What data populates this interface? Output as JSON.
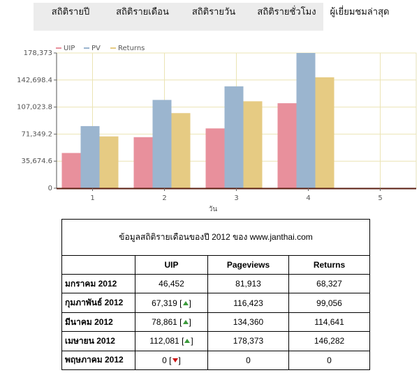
{
  "tabs": [
    {
      "label": "สถิติรายปี",
      "active": false
    },
    {
      "label": "สถิติรายเดือน",
      "active": false
    },
    {
      "label": "สถิติรายวัน",
      "active": false
    },
    {
      "label": "สถิติรายชั่วโมง",
      "active": false
    },
    {
      "label": "ผู้เยี่ยมชมล่าสุด",
      "active": true
    }
  ],
  "chart_data": {
    "type": "bar",
    "categories": [
      "1",
      "2",
      "3",
      "4",
      "5"
    ],
    "series": [
      {
        "name": "UIP",
        "color": "#e8909c",
        "values": [
          46452,
          67319,
          78861,
          112081,
          0
        ]
      },
      {
        "name": "PV",
        "color": "#9bb5cf",
        "values": [
          81913,
          116423,
          134360,
          178373,
          0
        ]
      },
      {
        "name": "Returns",
        "color": "#e6cb83",
        "values": [
          68327,
          99056,
          114641,
          146282,
          0
        ]
      }
    ],
    "xlabel": "วัน",
    "ylabel": "",
    "ylim": [
      0,
      178373
    ],
    "yticks": [
      "0",
      "35,674.6",
      "71,349.2",
      "107,023.8",
      "142,698.4",
      "178,373"
    ],
    "grid": true,
    "legend": "top-left"
  },
  "table": {
    "caption": "ข้อมูลสถิติรายเดือนของปี 2012 ของ www.janthai.com",
    "headers": [
      "",
      "UIP",
      "Pageviews",
      "Returns"
    ],
    "rows": [
      {
        "month": "มกราคม 2012",
        "uip": "46,452",
        "trend": "",
        "pageviews": "81,913",
        "returns": "68,327"
      },
      {
        "month": "กุมภาพันธ์ 2012",
        "uip": "67,319",
        "trend": "up",
        "pageviews": "116,423",
        "returns": "99,056"
      },
      {
        "month": "มีนาคม 2012",
        "uip": "78,861",
        "trend": "up",
        "pageviews": "134,360",
        "returns": "114,641"
      },
      {
        "month": "เมษายน 2012",
        "uip": "112,081",
        "trend": "up",
        "pageviews": "178,373",
        "returns": "146,282"
      },
      {
        "month": "พฤษภาคม 2012",
        "uip": "0",
        "trend": "down",
        "pageviews": "0",
        "returns": "0"
      }
    ],
    "trend_up_color": "#3a9a3a",
    "trend_down_color": "#cc1111"
  }
}
